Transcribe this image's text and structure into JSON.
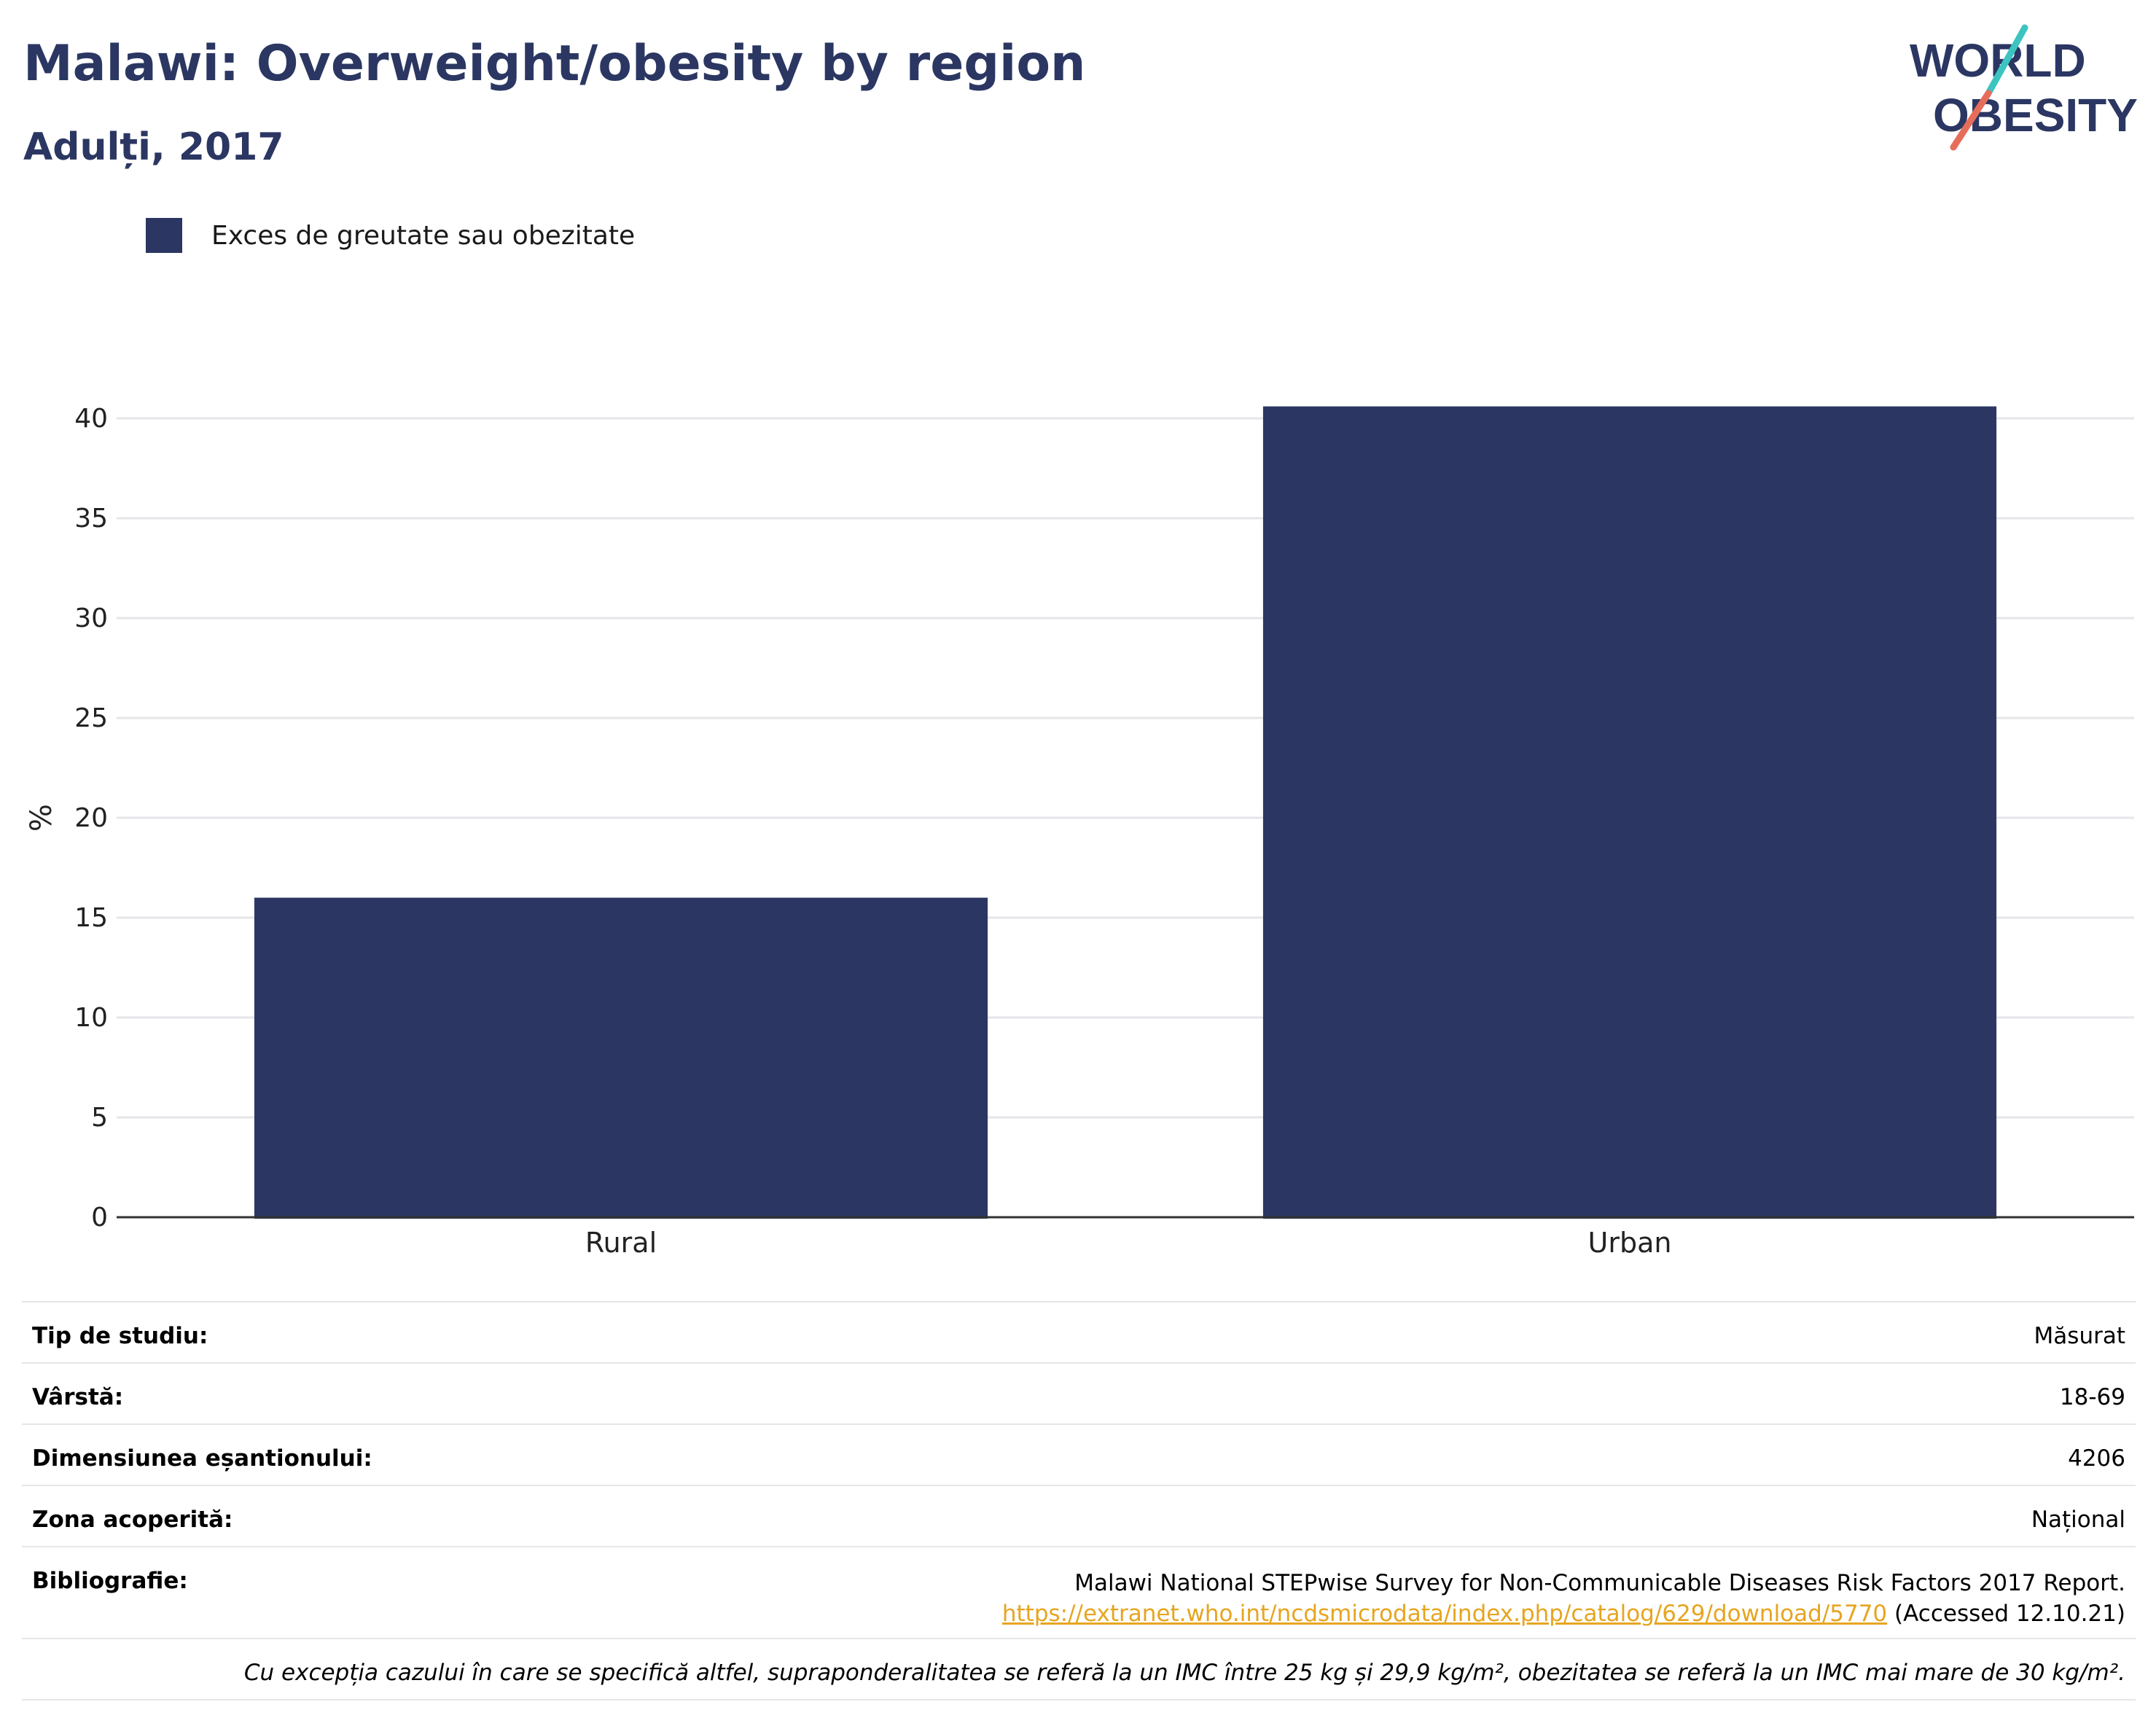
{
  "header": {
    "title": "Malawi: Overweight/obesity by region",
    "subtitle": "Adulți, 2017"
  },
  "logo": {
    "line1": "WORLD",
    "line2": "OBESITY",
    "slash_colors": [
      "#3cc4c0",
      "#e76d5b"
    ]
  },
  "colors": {
    "bar": "#2b3762",
    "title": "#2b3762",
    "grid": "#e6e6ea",
    "link": "#e6a520"
  },
  "chart_data": {
    "type": "bar",
    "categories": [
      "Rural",
      "Urban"
    ],
    "series": [
      {
        "name": "Exces de greutate sau obezitate",
        "values": [
          16.0,
          40.6
        ]
      }
    ],
    "ylabel": "%",
    "ylim": [
      0,
      42
    ],
    "yticks": [
      0,
      5,
      10,
      15,
      20,
      25,
      30,
      35,
      40
    ],
    "grid": true,
    "legend": "top-left"
  },
  "meta": {
    "study_type_label": "Tip de studiu:",
    "study_type_value": "Măsurat",
    "age_label": "Vârstă:",
    "age_value": "18-69",
    "sample_label": "Dimensiunea eșantionului:",
    "sample_value": "4206",
    "area_label": "Zona acoperită:",
    "area_value": "Național",
    "bib_label": "Bibliografie:",
    "bib_text": "Malawi National STEPwise Survey for Non-Communicable Diseases Risk Factors 2017 Report.",
    "bib_link": "https://extranet.who.int/ncdsmicrodata/index.php/catalog/629/download/5770",
    "bib_accessed": "(Accessed 12.10.21)",
    "note": "Cu excepția cazului în care se specifică altfel, supraponderalitatea se referă la un IMC între 25 kg și 29,9 kg/m², obezitatea se referă la un IMC mai mare de 30 kg/m²."
  }
}
